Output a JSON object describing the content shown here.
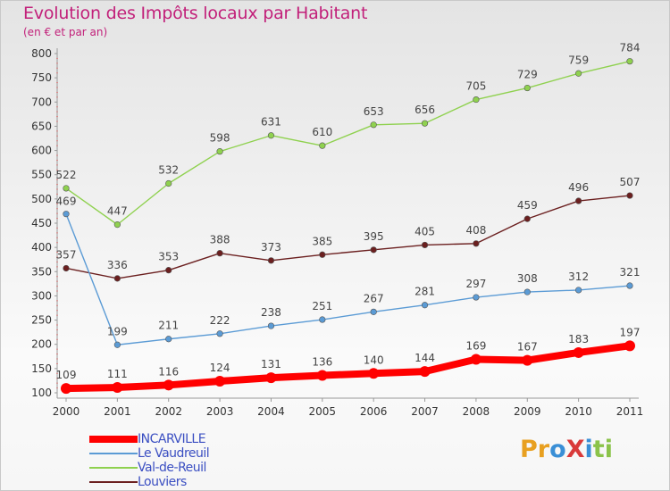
{
  "title": "Evolution des Impôts locaux par Habitant",
  "subtitle": "(en € et par an)",
  "logo": {
    "text": "ProXiti",
    "colors": [
      "#e8a020",
      "#e8a020",
      "#3a8fd6",
      "#d93a3a",
      "#3a8fd6",
      "#8bc34a",
      "#8bc34a"
    ]
  },
  "chart_data": {
    "type": "line",
    "x": [
      "2000",
      "2001",
      "2002",
      "2003",
      "2004",
      "2005",
      "2006",
      "2007",
      "2008",
      "2009",
      "2010",
      "2011"
    ],
    "ylim": [
      100,
      800
    ],
    "yticks": [
      100,
      150,
      200,
      250,
      300,
      350,
      400,
      450,
      500,
      550,
      600,
      650,
      700,
      750,
      800
    ],
    "grid": false,
    "legend": "bottom-left",
    "series": [
      {
        "name": "INCARVILLE",
        "color": "#ff0000",
        "values": [
          109,
          111,
          116,
          124,
          131,
          136,
          140,
          144,
          169,
          167,
          183,
          197
        ]
      },
      {
        "name": "Le Vaudreuil",
        "color": "#5b9bd5",
        "values": [
          469,
          199,
          211,
          222,
          238,
          251,
          267,
          281,
          297,
          308,
          312,
          321
        ]
      },
      {
        "name": "Val-de-Reuil",
        "color": "#8fd14f",
        "values": [
          522,
          447,
          532,
          598,
          631,
          610,
          653,
          656,
          705,
          729,
          759,
          784
        ]
      },
      {
        "name": "Louviers",
        "color": "#6b1f1f",
        "values": [
          357,
          336,
          353,
          388,
          373,
          385,
          395,
          405,
          408,
          459,
          496,
          507
        ]
      }
    ]
  }
}
